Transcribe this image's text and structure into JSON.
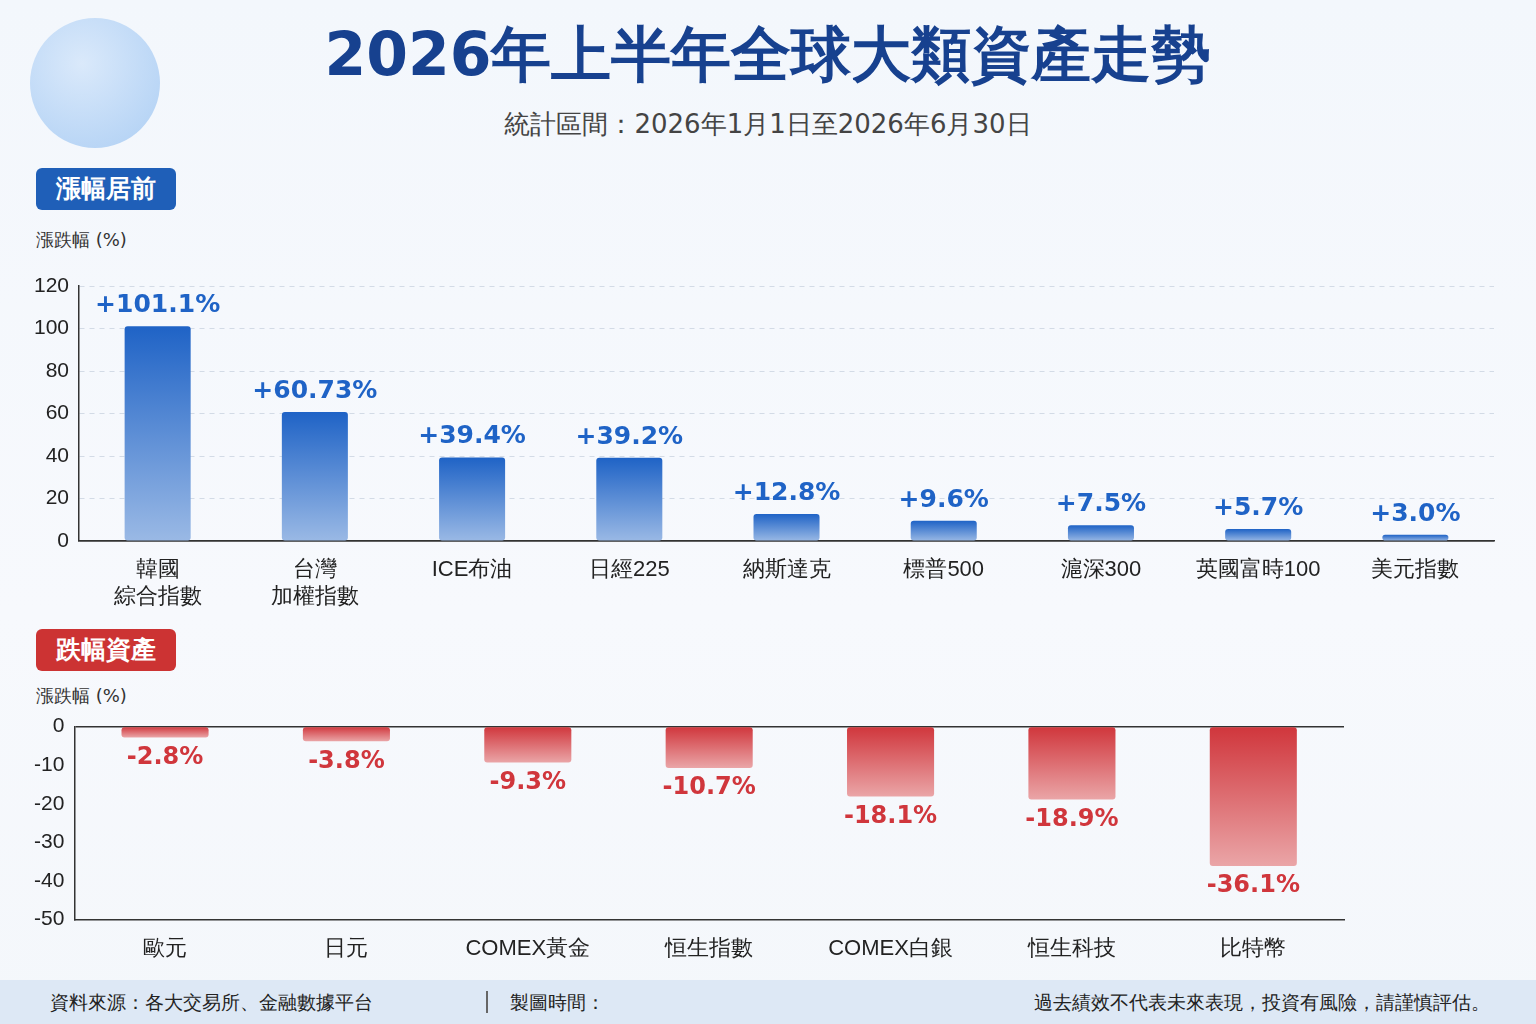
{
  "title": "2026年上半年全球大類資產走勢",
  "subtitle": "統計區間：2026年1月1日至2026年6月30日",
  "chart_data": [
    {
      "type": "bar",
      "title": "漲幅居前",
      "ylabel": "漲跌幅 (%)",
      "categories": [
        [
          "韓國",
          "綜合指數"
        ],
        [
          "台灣",
          "加權指數"
        ],
        "ICE布油",
        "日經225",
        "納斯達克",
        "標普500",
        "滬深300",
        "英國富時100",
        "美元指數"
      ],
      "values": [
        101.1,
        60.73,
        39.4,
        39.2,
        12.8,
        9.6,
        7.5,
        5.7,
        3.0
      ],
      "value_labels": [
        "+101.1%",
        "+60.73%",
        "+39.4%",
        "+39.2%",
        "+12.8%",
        "+9.6%",
        "+7.5%",
        "+5.7%",
        "+3.0%"
      ],
      "color": "#1f63c6",
      "ylim": [
        0,
        120
      ],
      "yticks": [
        0,
        20,
        40,
        60,
        80,
        100,
        120
      ],
      "grid": true,
      "data_labels": true
    },
    {
      "type": "bar",
      "title": "跌幅資產",
      "ylabel": "漲跌幅 (%)",
      "categories": [
        "歐元",
        "日元",
        "COMEX黃金",
        "恒生指數",
        "COMEX白銀",
        "恒生科技",
        "比特幣"
      ],
      "values": [
        -2.8,
        -3.8,
        -9.3,
        -10.7,
        -18.1,
        -18.9,
        -36.1
      ],
      "value_labels": [
        "-2.8%",
        "-3.8%",
        "-9.3%",
        "-10.7%",
        "-18.1%",
        "-18.9%",
        "-36.1%"
      ],
      "color": "#d0363c",
      "ylim": [
        -50,
        0
      ],
      "yticks": [
        0,
        -10,
        -20,
        -30,
        -40,
        -50
      ],
      "grid": false,
      "data_labels": true
    }
  ],
  "footer": {
    "source": "資料來源：各大交易所、金融數據平台",
    "time": "製圖時間：",
    "disclaimer": "過去績效不代表未來表現，投資有風險，請謹慎評估。"
  }
}
